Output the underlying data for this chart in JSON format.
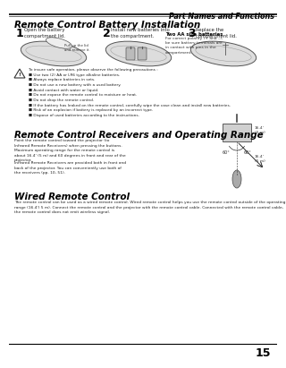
{
  "page_number": "15",
  "header_title": "Part Names and Functions",
  "section1_title": "Remote Control Battery Installation",
  "steps": [
    {
      "num": "1",
      "text": "Open the battery\ncompartment lid."
    },
    {
      "num": "2",
      "text": "Install new batteries into\nthe compartment."
    },
    {
      "num": "3",
      "text": "Replace the\ncompartment lid."
    }
  ],
  "battery_bold": "Two AA size batteries",
  "battery_text": "For correct polarity (+ and –),\nbe sure battery terminals are\nin contact with pins in the\ncompartment.",
  "warning_text": "To insure safe operation, please observe the following precautions :\n■ Use two (2) AA or LR6 type alkaline batteries.\n■ Always replace batteries in sets.\n■ Do not use a new battery with a used battery.\n■ Avoid contact with water or liquid.\n■ Do not expose the remote control to moisture or heat.\n■ Do not drop the remote control.\n■ If the battery has leaked on the remote control, carefully wipe the case clean and install new batteries.\n■ Risk of an explosion if battery is replaced by an incorrect type.\n■ Dispose of used batteries according to the instructions.",
  "section2_title": "Remote Control Receivers and Operating Range",
  "section2_text1": "Point the remote control toward the projector (to\nInfrared Remote Receivers) when pressing the buttons.\nMaximum operating range for the remote control is\nabout 16.4' (5 m) and 60 degrees in front and rear of the\nprojector.",
  "section2_text2": "Infrared Remote Receivers are provided both in front and\nback of the projector. You can conveniently use both of\nthe receivers (pp. 10, 51).",
  "section3_title": "Wired Remote Control",
  "section3_text": "The remote control can be used as a wired remote control. Wired remote control helps you use the remote control outside of the operating range (16.4') 5 m). Connect the remote control and the projector with the remote control cable. Connected with the remote control cable, the remote control does not emit wireless signal.",
  "bg_color": "#ffffff",
  "text_color": "#222222",
  "dim_label1": "16.4'\n(5 m)",
  "dim_angle1": "60°",
  "dim_angle2": "60°",
  "dim_label2": "16.4'\n(5 m)"
}
